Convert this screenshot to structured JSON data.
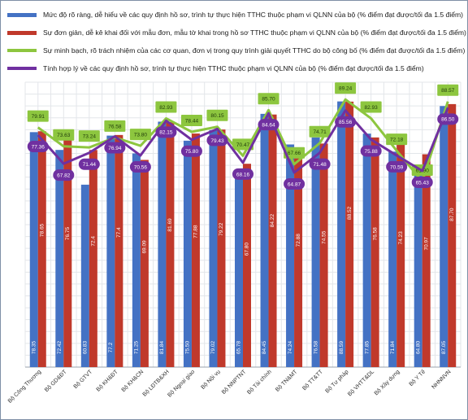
{
  "chart_data": {
    "type": "bar",
    "categories": [
      "Bộ Công Thương",
      "Bộ GD&ĐT",
      "Bộ GTVT",
      "Bộ KH&ĐT",
      "Bộ KH&CN",
      "Bộ LĐTB&XH",
      "Bộ Ngoại giao",
      "Bộ Nội vụ",
      "Bộ NNPTNT",
      "Bộ Tài chính",
      "Bộ TN&MT",
      "Bộ TT&TT",
      "Bộ Tư pháp",
      "Bộ VHTT&DL",
      "Bộ Xây dựng",
      "Bộ Y Tế",
      "NHNNVN"
    ],
    "series": [
      {
        "name": "Mức độ rõ ràng, dễ hiểu về các quy định hồ sơ, trình tự thực hiện TTHC thuộc phạm vi QLNN của bộ (% điểm đạt được/tối đa 1.5 điểm)",
        "kind": "bar",
        "color": "#4472c4",
        "values": [
          78.35,
          72.42,
          60.83,
          77.2,
          71.25,
          81.84,
          75.5,
          79.02,
          65.78,
          84.45,
          74.24,
          76.58,
          88.59,
          77.85,
          71.84,
          64.8,
          87.05
        ],
        "labels": [
          "78.35",
          "72.42",
          "60.83",
          "77.2",
          "71.25",
          "81.84",
          "75.50",
          "79.02",
          "65.78",
          "84.45",
          "74.24",
          "76.58",
          "88.59",
          "77.85",
          "71.84",
          "64.80",
          "87.05"
        ]
      },
      {
        "name": "Sự đơn giản, dễ kê khai đối với mẫu đơn, mẫu tờ khai trong hồ sơ TTHC thuộc phạm vi QLNN của bộ (% điểm đạt được/tối đa 1.5 điểm)",
        "kind": "bar",
        "color": "#c0392b",
        "values": [
          78.65,
          76.75,
          72.4,
          77.4,
          69.09,
          81.69,
          77.88,
          79.22,
          67.8,
          84.22,
          72.88,
          74.55,
          88.52,
          76.58,
          74.23,
          70.97,
          87.7
        ],
        "labels": [
          "78.65",
          "76.75",
          "72.4",
          "77.4",
          "69.09",
          "81.69",
          "77.88",
          "79.22",
          "67.80",
          "84.22",
          "72.88",
          "74.55",
          "88.52",
          "76.58",
          "74.23",
          "70.97",
          "87.70"
        ]
      },
      {
        "name": "Sự minh bạch, rõ trách nhiệm của các cơ quan, đơn vị trong quy trình giải quyết TTHC do bộ công bố (% điểm đạt được/tối đa 1.5 điểm)",
        "kind": "line",
        "color": "#8dc63f",
        "values": [
          79.91,
          73.63,
          73.24,
          76.58,
          73.8,
          82.93,
          78.44,
          80.15,
          70.47,
          85.7,
          67.66,
          74.71,
          89.24,
          82.93,
          72.18,
          61.9,
          88.57
        ],
        "labels": [
          "79.91",
          "73.63",
          "73.24",
          "76.58",
          "73.80",
          "82.93",
          "78.44",
          "80.15",
          "70.47",
          "85.70",
          "67.66",
          "74.71",
          "89.24",
          "82.93",
          "72.18",
          "61.90",
          "88.57"
        ]
      },
      {
        "name": "Tính hợp lý về các quy định hồ sơ, trình tự thực hiện TTHC thuộc phạm vi QLNN của bộ (% điểm đạt được/tối đa 1.5 điểm)",
        "kind": "line",
        "color": "#7030a0",
        "values": [
          77.36,
          67.82,
          71.44,
          76.94,
          70.56,
          82.15,
          75.8,
          79.43,
          68.16,
          84.64,
          64.87,
          71.48,
          85.56,
          75.88,
          70.59,
          65.43,
          86.5
        ],
        "labels": [
          "77.36",
          "67.82",
          "71.44",
          "76.94",
          "70.56",
          "82.15",
          "75.80",
          "79.43",
          "68.16",
          "84.64",
          "64.87",
          "71.48",
          "85.56",
          "75.88",
          "70.59",
          "65.43",
          "86.50"
        ]
      }
    ],
    "ylim": [
      0,
      95
    ],
    "grid": true,
    "legend": "top"
  }
}
